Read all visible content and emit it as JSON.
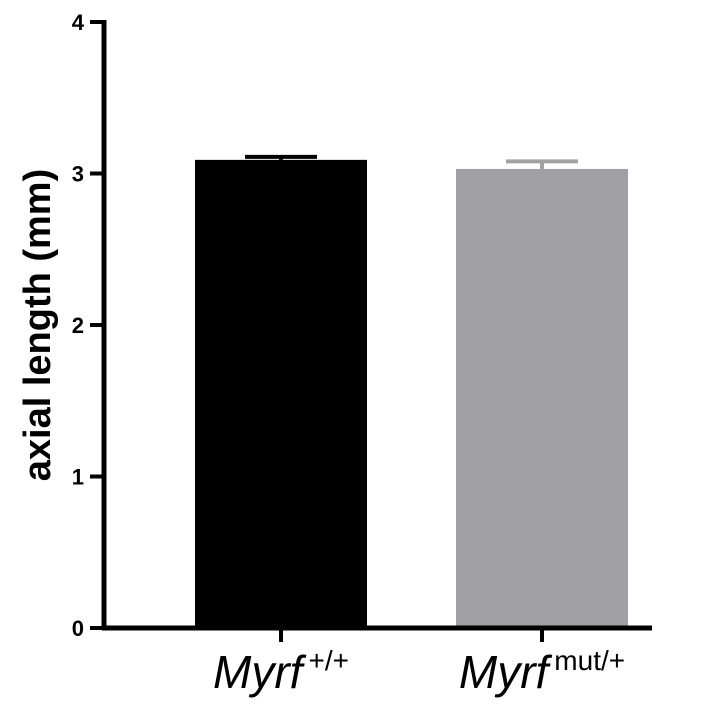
{
  "chart_data": {
    "type": "bar",
    "title": "",
    "ylabel": "axial length (mm)",
    "xlabel": "",
    "ylim": [
      0,
      4
    ],
    "yticks": [
      "0",
      "1",
      "2",
      "3",
      "4"
    ],
    "categories": [
      {
        "name": "Myrf",
        "superscript": "+/+"
      },
      {
        "name": "Myrf",
        "superscript": "mut/+"
      }
    ],
    "values": [
      3.09,
      3.03
    ],
    "errors": [
      0.02,
      0.05
    ],
    "colors": [
      "#000000",
      "#a1a0a5"
    ],
    "grid": false,
    "legend": false
  }
}
